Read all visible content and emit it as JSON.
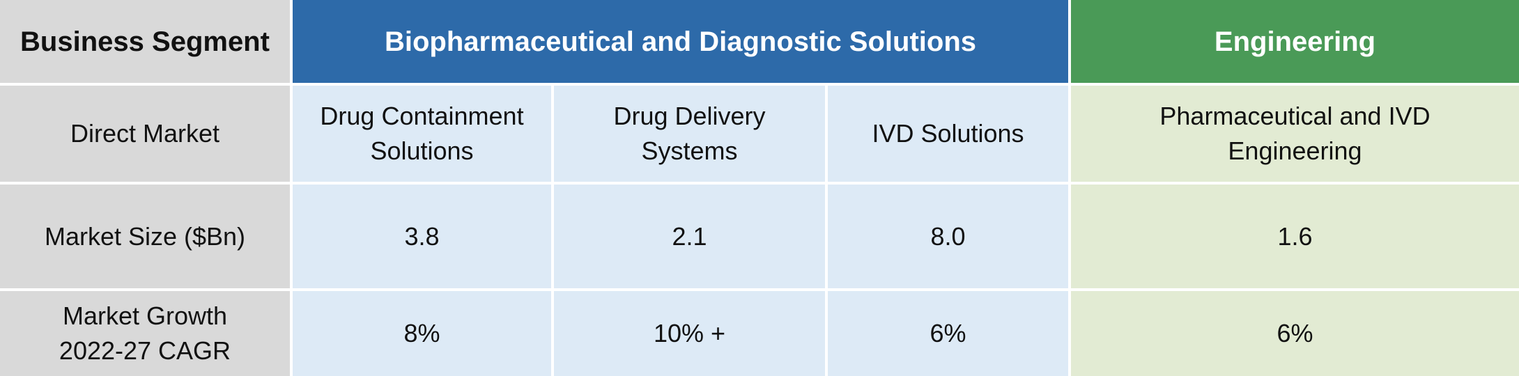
{
  "header": {
    "segment_label": "Business Segment",
    "biopharma": "Biopharmaceutical and Diagnostic Solutions",
    "engineering": "Engineering"
  },
  "rows": {
    "direct_market": {
      "label": "Direct Market",
      "drug_containment": "Drug Containment Solutions",
      "drug_delivery": "Drug Delivery Systems",
      "ivd": "IVD Solutions",
      "engineering": "Pharmaceutical and IVD Engineering"
    },
    "market_size": {
      "label": "Market Size ($Bn)",
      "drug_containment": "3.8",
      "drug_delivery": "2.1",
      "ivd": "8.0",
      "engineering": "1.6"
    },
    "market_growth": {
      "label": "Market Growth 2022-27 CAGR",
      "drug_containment": "8%",
      "drug_delivery": "10% +",
      "ivd": "6%",
      "engineering": "6%"
    }
  },
  "colors": {
    "biopharma_header": "#2d6aa9",
    "engineering_header": "#4a9a57",
    "label_fill": "#d9d9d9",
    "biopharma_fill": "#ddeaf6",
    "engineering_fill": "#e2ebd3"
  }
}
